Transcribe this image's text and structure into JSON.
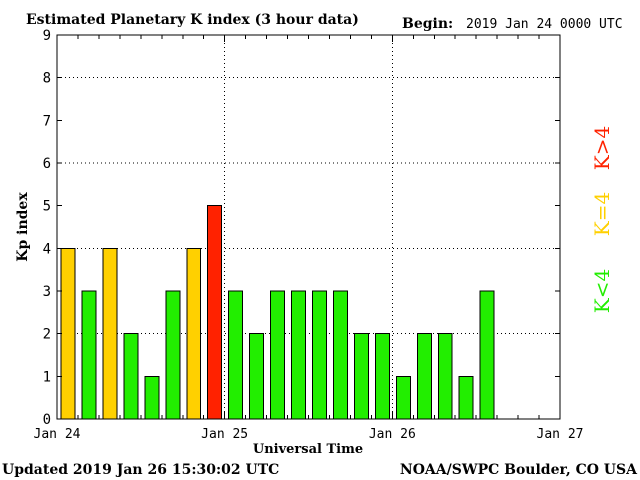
{
  "header": {
    "title": "Estimated Planetary K index (3 hour data)",
    "begin_label": "Begin:",
    "begin_value": "2019 Jan 24 0000 UTC"
  },
  "footer": {
    "updated": "Updated 2019 Jan 26 15:30:02 UTC",
    "source": "NOAA/SWPC Boulder, CO USA"
  },
  "legend": {
    "high": "K>4",
    "equal": "K=4",
    "low": "K<4"
  },
  "colors": {
    "high": "#ff2200",
    "equal": "#ffd000",
    "low": "#22ee00"
  },
  "chart_data": {
    "type": "bar",
    "title": "Estimated Planetary K index (3 hour data)",
    "xlabel": "Universal Time",
    "ylabel": "Kp index",
    "ylim": [
      0,
      9
    ],
    "yticks": [
      "0",
      "1",
      "2",
      "3",
      "4",
      "5",
      "6",
      "7",
      "8",
      "9"
    ],
    "xticks": [
      "Jan 24",
      "Jan 25",
      "Jan 26",
      "Jan 27"
    ],
    "grid": true,
    "interval_hours": 3,
    "values": [
      4,
      3,
      4,
      2,
      1,
      3,
      4,
      5,
      3,
      2,
      3,
      3,
      3,
      3,
      2,
      2,
      1,
      2,
      2,
      1,
      3
    ]
  }
}
